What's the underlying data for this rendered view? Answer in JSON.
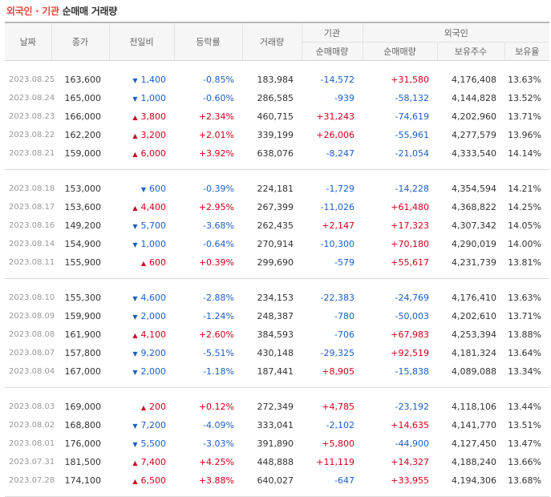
{
  "title": {
    "part1": "외국인 · 기관",
    "part2": "순매매 거래량"
  },
  "headers": {
    "date": "날짜",
    "close": "종가",
    "change": "전일비",
    "rate": "등락률",
    "volume": "거래량",
    "inst": "기관",
    "inst_net": "순매매량",
    "foreign": "외국인",
    "foreign_net": "순매매량",
    "foreign_hold": "보유주수",
    "foreign_ratio": "보유율"
  },
  "groups": [
    [
      {
        "date": "2023.08.25",
        "close": "163,600",
        "dir": "down",
        "change": "1,400",
        "rate": "-0.85%",
        "volume": "183,984",
        "inst": "-14,572",
        "foreign": "+31,580",
        "hold": "4,176,408",
        "ratio": "13.63%"
      },
      {
        "date": "2023.08.24",
        "close": "165,000",
        "dir": "down",
        "change": "1,000",
        "rate": "-0.60%",
        "volume": "286,585",
        "inst": "-939",
        "foreign": "-58,132",
        "hold": "4,144,828",
        "ratio": "13.52%"
      },
      {
        "date": "2023.08.23",
        "close": "166,000",
        "dir": "up",
        "change": "3,800",
        "rate": "+2.34%",
        "volume": "460,715",
        "inst": "+31,243",
        "foreign": "-74,619",
        "hold": "4,202,960",
        "ratio": "13.71%"
      },
      {
        "date": "2023.08.22",
        "close": "162,200",
        "dir": "up",
        "change": "3,200",
        "rate": "+2.01%",
        "volume": "339,199",
        "inst": "+26,006",
        "foreign": "-55,961",
        "hold": "4,277,579",
        "ratio": "13.96%"
      },
      {
        "date": "2023.08.21",
        "close": "159,000",
        "dir": "up",
        "change": "6,000",
        "rate": "+3.92%",
        "volume": "638,076",
        "inst": "-8,247",
        "foreign": "-21,054",
        "hold": "4,333,540",
        "ratio": "14.14%"
      }
    ],
    [
      {
        "date": "2023.08.18",
        "close": "153,000",
        "dir": "down",
        "change": "600",
        "rate": "-0.39%",
        "volume": "224,181",
        "inst": "-1,729",
        "foreign": "-14,228",
        "hold": "4,354,594",
        "ratio": "14.21%"
      },
      {
        "date": "2023.08.17",
        "close": "153,600",
        "dir": "up",
        "change": "4,400",
        "rate": "+2.95%",
        "volume": "267,399",
        "inst": "-11,026",
        "foreign": "+61,480",
        "hold": "4,368,822",
        "ratio": "14.25%"
      },
      {
        "date": "2023.08.16",
        "close": "149,200",
        "dir": "down",
        "change": "5,700",
        "rate": "-3.68%",
        "volume": "262,435",
        "inst": "+2,147",
        "foreign": "+17,323",
        "hold": "4,307,342",
        "ratio": "14.05%"
      },
      {
        "date": "2023.08.14",
        "close": "154,900",
        "dir": "down",
        "change": "1,000",
        "rate": "-0.64%",
        "volume": "270,914",
        "inst": "-10,300",
        "foreign": "+70,180",
        "hold": "4,290,019",
        "ratio": "14.00%"
      },
      {
        "date": "2023.08.11",
        "close": "155,900",
        "dir": "up",
        "change": "600",
        "rate": "+0.39%",
        "volume": "299,690",
        "inst": "-579",
        "foreign": "+55,617",
        "hold": "4,231,739",
        "ratio": "13.81%"
      }
    ],
    [
      {
        "date": "2023.08.10",
        "close": "155,300",
        "dir": "down",
        "change": "4,600",
        "rate": "-2.88%",
        "volume": "234,153",
        "inst": "-22,383",
        "foreign": "-24,769",
        "hold": "4,176,410",
        "ratio": "13.63%"
      },
      {
        "date": "2023.08.09",
        "close": "159,900",
        "dir": "down",
        "change": "2,000",
        "rate": "-1.24%",
        "volume": "248,387",
        "inst": "-780",
        "foreign": "-50,003",
        "hold": "4,202,610",
        "ratio": "13.71%"
      },
      {
        "date": "2023.08.08",
        "close": "161,900",
        "dir": "up",
        "change": "4,100",
        "rate": "+2.60%",
        "volume": "384,593",
        "inst": "-706",
        "foreign": "+67,983",
        "hold": "4,253,394",
        "ratio": "13.88%"
      },
      {
        "date": "2023.08.07",
        "close": "157,800",
        "dir": "down",
        "change": "9,200",
        "rate": "-5.51%",
        "volume": "430,148",
        "inst": "-29,325",
        "foreign": "+92,519",
        "hold": "4,181,324",
        "ratio": "13.64%"
      },
      {
        "date": "2023.08.04",
        "close": "167,000",
        "dir": "down",
        "change": "2,000",
        "rate": "-1.18%",
        "volume": "187,441",
        "inst": "+8,905",
        "foreign": "-15,838",
        "hold": "4,089,088",
        "ratio": "13.34%"
      }
    ],
    [
      {
        "date": "2023.08.03",
        "close": "169,000",
        "dir": "up",
        "change": "200",
        "rate": "+0.12%",
        "volume": "272,349",
        "inst": "+4,785",
        "foreign": "-23,192",
        "hold": "4,118,106",
        "ratio": "13.44%"
      },
      {
        "date": "2023.08.02",
        "close": "168,800",
        "dir": "down",
        "change": "7,200",
        "rate": "-4.09%",
        "volume": "333,041",
        "inst": "-2,102",
        "foreign": "+14,635",
        "hold": "4,141,770",
        "ratio": "13.51%"
      },
      {
        "date": "2023.08.01",
        "close": "176,000",
        "dir": "down",
        "change": "5,500",
        "rate": "-3.03%",
        "volume": "391,890",
        "inst": "+5,800",
        "foreign": "-44,900",
        "hold": "4,127,450",
        "ratio": "13.47%"
      },
      {
        "date": "2023.07.31",
        "close": "181,500",
        "dir": "up",
        "change": "7,400",
        "rate": "+4.25%",
        "volume": "448,888",
        "inst": "+11,119",
        "foreign": "+14,327",
        "hold": "4,188,240",
        "ratio": "13.66%"
      },
      {
        "date": "2023.07.28",
        "close": "174,100",
        "dir": "up",
        "change": "6,500",
        "rate": "+3.88%",
        "volume": "640,027",
        "inst": "-647",
        "foreign": "+33,955",
        "hold": "4,194,306",
        "ratio": "13.68%"
      }
    ]
  ],
  "colors": {
    "up": "#d0021b",
    "down": "#1a5fc7",
    "title_red": "#e8463a"
  },
  "icons": {
    "up": "triangle-up-icon",
    "down": "triangle-down-icon"
  }
}
